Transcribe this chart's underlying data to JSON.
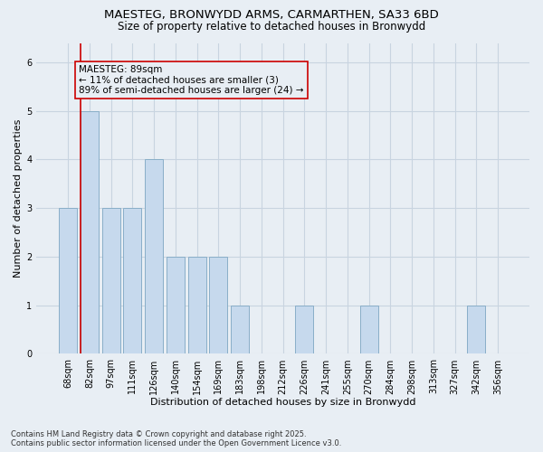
{
  "title_line1": "MAESTEG, BRONWYDD ARMS, CARMARTHEN, SA33 6BD",
  "title_line2": "Size of property relative to detached houses in Bronwydd",
  "xlabel": "Distribution of detached houses by size in Bronwydd",
  "ylabel": "Number of detached properties",
  "bar_labels": [
    "68sqm",
    "82sqm",
    "97sqm",
    "111sqm",
    "126sqm",
    "140sqm",
    "154sqm",
    "169sqm",
    "183sqm",
    "198sqm",
    "212sqm",
    "226sqm",
    "241sqm",
    "255sqm",
    "270sqm",
    "284sqm",
    "298sqm",
    "313sqm",
    "327sqm",
    "342sqm",
    "356sqm"
  ],
  "bar_values": [
    3,
    5,
    3,
    3,
    4,
    2,
    2,
    2,
    1,
    0,
    0,
    1,
    0,
    0,
    1,
    0,
    0,
    0,
    0,
    1,
    0
  ],
  "bar_color": "#c6d9ed",
  "bar_edge_color": "#89aec8",
  "grid_color": "#c8d4e0",
  "background_color": "#e8eef4",
  "vline_color": "#cc0000",
  "annotation_text": "MAESTEG: 89sqm\n← 11% of detached houses are smaller (3)\n89% of semi-detached houses are larger (24) →",
  "annotation_box_edgecolor": "#cc0000",
  "ylim": [
    0,
    6.4
  ],
  "yticks": [
    0,
    1,
    2,
    3,
    4,
    5,
    6
  ],
  "footer_text": "Contains HM Land Registry data © Crown copyright and database right 2025.\nContains public sector information licensed under the Open Government Licence v3.0.",
  "title_fontsize": 9.5,
  "subtitle_fontsize": 8.5,
  "axis_label_fontsize": 8,
  "tick_fontsize": 7,
  "annotation_fontsize": 7.5,
  "footer_fontsize": 6
}
